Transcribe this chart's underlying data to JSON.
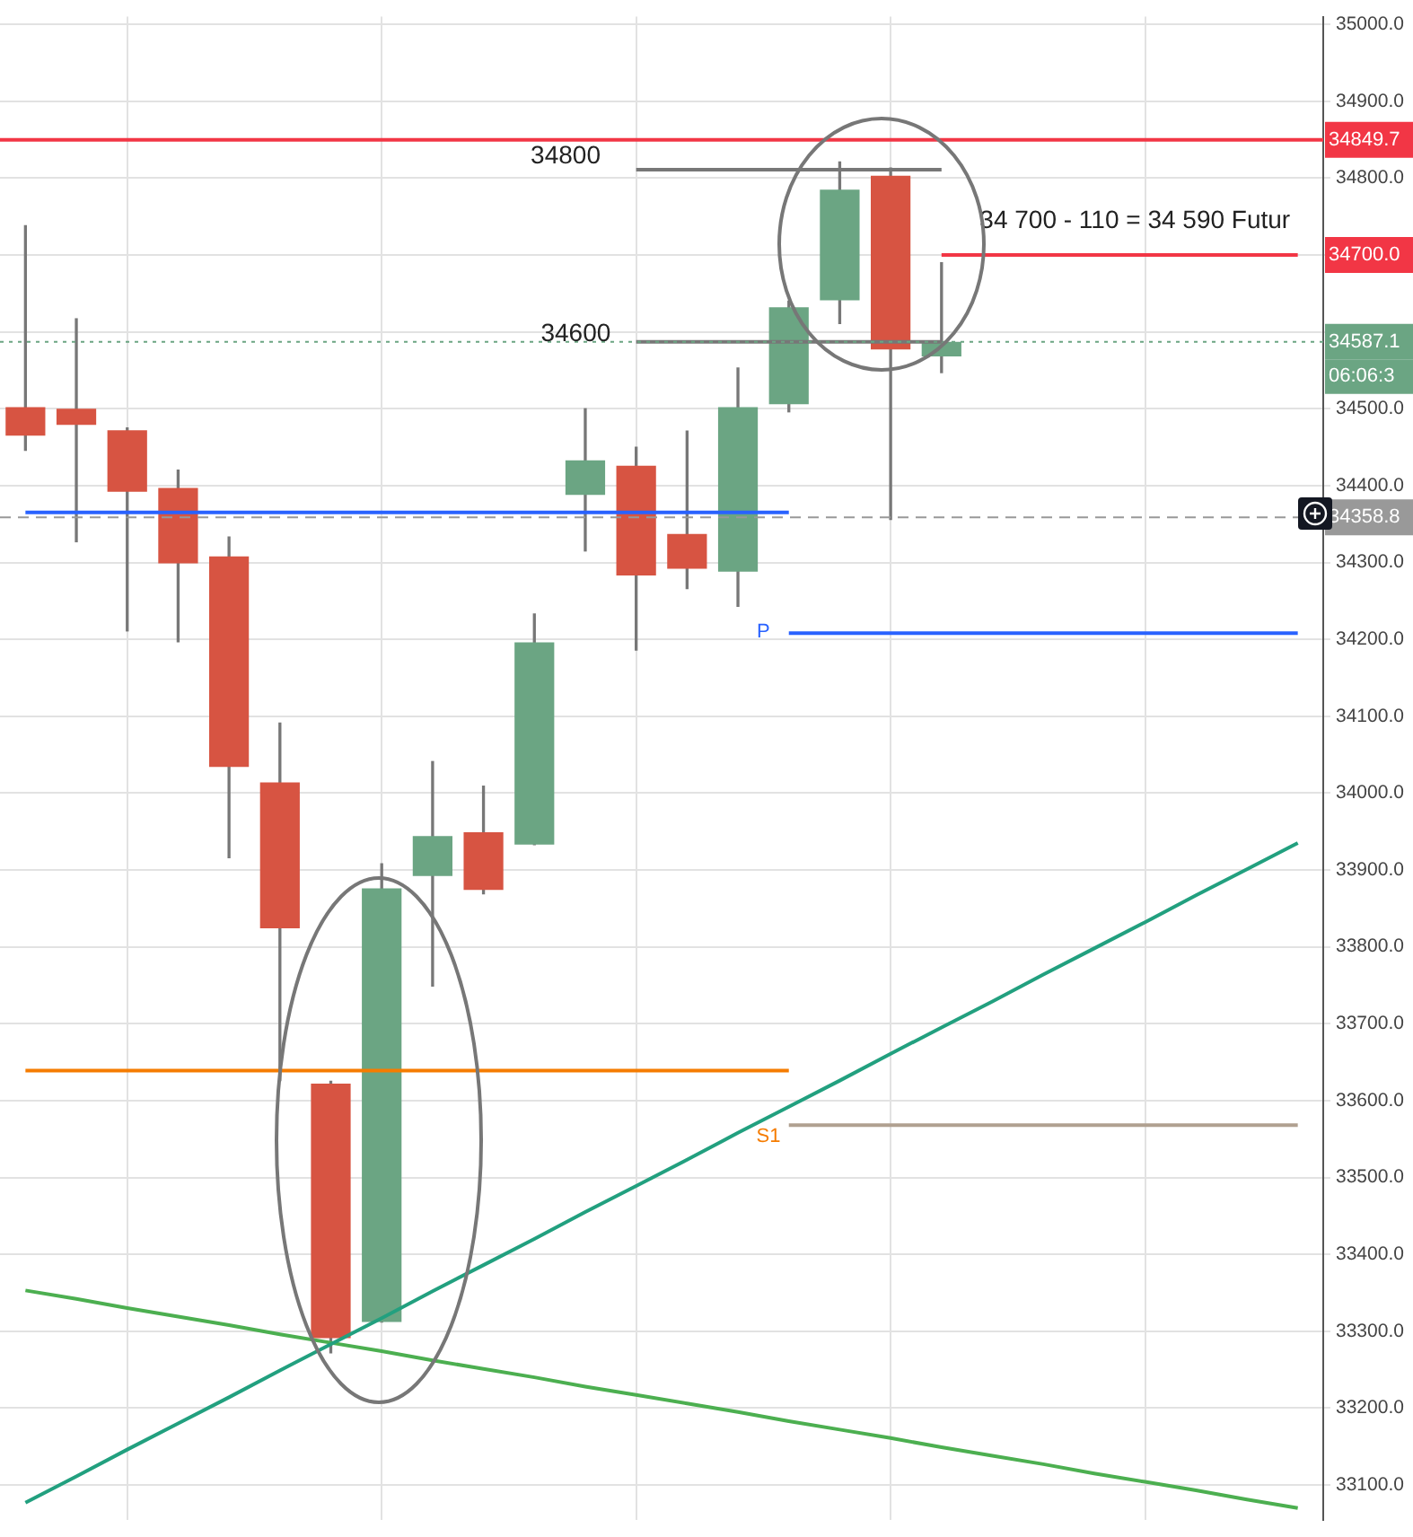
{
  "chart_data": {
    "type": "candlestick",
    "categories": [
      null,
      null,
      null,
      null,
      null,
      null,
      null,
      null,
      null,
      null,
      null,
      null,
      null,
      null,
      null,
      null,
      null,
      null,
      null,
      null,
      null,
      null,
      null,
      null,
      null,
      null
    ],
    "ohlc": [
      [
        34502,
        34738,
        34446,
        34465
      ],
      [
        34500,
        34617,
        34327,
        34479
      ],
      [
        34472,
        34475,
        34211,
        34392
      ],
      [
        34397,
        34420,
        34197,
        34299
      ],
      [
        34308,
        34333,
        33916,
        34034
      ],
      [
        34014,
        34091,
        33626,
        33824
      ],
      [
        33622,
        33625,
        33272,
        33291
      ],
      [
        33312,
        33908,
        33312,
        33876
      ],
      [
        33892,
        34041,
        33749,
        33944
      ],
      [
        33949,
        34009,
        33869,
        33874
      ],
      [
        33933,
        34233,
        33933,
        34196
      ],
      [
        34388,
        34500,
        34315,
        34433
      ],
      [
        34426,
        34450,
        34186,
        34283
      ],
      [
        34337,
        34471,
        34266,
        34292
      ],
      [
        34288,
        34553,
        34243,
        34502
      ],
      [
        34506,
        34640,
        34496,
        34632
      ],
      [
        34641,
        34821,
        34611,
        34785
      ],
      [
        34803,
        34813,
        34356,
        34577
      ],
      [
        34568,
        34690,
        34547,
        34587
      ],
      null,
      null,
      null,
      null,
      null,
      null,
      null
    ],
    "colors": [
      "#d75442",
      "#d75442",
      "#d75442",
      "#d75442",
      "#d75442",
      "#d75442",
      "#d75442",
      "#6ba583",
      "#6ba583",
      "#d75442",
      "#6ba583",
      "#6ba583",
      "#d75442",
      "#d75442",
      "#6ba583",
      "#6ba583",
      "#6ba583",
      "#d75442",
      "#6ba583",
      null,
      null,
      null,
      null,
      null,
      null,
      null
    ],
    "series": [
      {
        "type": "line",
        "color": "#2962ff",
        "values": [
          34365,
          34365,
          34365,
          34365,
          34365,
          34365,
          34365,
          34365,
          34365,
          34365,
          34365,
          34365,
          34365,
          34365,
          34365,
          34365,
          null,
          null,
          null,
          null,
          null,
          null,
          null,
          null,
          null,
          null
        ]
      },
      {
        "type": "line",
        "color": "#f57c00",
        "values": [
          33639,
          33639,
          33639,
          33639,
          33639,
          33639,
          33639,
          33639,
          33639,
          33639,
          33639,
          33639,
          33639,
          33639,
          33639,
          33639,
          null,
          null,
          null,
          null,
          null,
          null,
          null,
          null,
          null,
          null
        ]
      },
      {
        "type": "line",
        "color": "#2962ff",
        "values": [
          null,
          null,
          null,
          null,
          null,
          null,
          null,
          null,
          null,
          null,
          null,
          null,
          null,
          null,
          null,
          34208,
          34208,
          34208,
          34208,
          34208,
          34208,
          34208,
          34208,
          34208,
          34208,
          34208
        ]
      },
      {
        "type": "line",
        "color": "#b0a090",
        "values": [
          null,
          null,
          null,
          null,
          null,
          null,
          null,
          null,
          null,
          null,
          null,
          null,
          null,
          null,
          null,
          33568,
          33568,
          33568,
          33568,
          33568,
          33568,
          33568,
          33568,
          33568,
          33568,
          33568
        ]
      },
      {
        "type": "line",
        "color": "#777777",
        "values": [
          null,
          null,
          null,
          null,
          null,
          null,
          null,
          null,
          null,
          null,
          null,
          null,
          34811,
          34811,
          34811,
          34811,
          34811,
          34811,
          34811,
          null,
          null,
          null,
          null,
          null,
          null,
          null
        ]
      },
      {
        "type": "line",
        "color": "#777777",
        "values": [
          null,
          null,
          null,
          null,
          null,
          null,
          null,
          null,
          null,
          null,
          null,
          null,
          34587,
          34587,
          34587,
          34587,
          34587,
          34587,
          34587,
          null,
          null,
          null,
          null,
          null,
          null,
          null
        ]
      },
      {
        "type": "line",
        "name": "34700.0",
        "color": "#f23645",
        "values": [
          null,
          null,
          null,
          null,
          null,
          null,
          null,
          null,
          null,
          null,
          null,
          null,
          null,
          null,
          null,
          null,
          null,
          null,
          34700,
          34700,
          34700,
          34700,
          34700,
          34700,
          34700,
          34700
        ]
      },
      {
        "type": "line",
        "color": "#22a07f",
        "values": [
          33077,
          33111,
          33146,
          33180,
          33214,
          33249,
          33283,
          33317,
          33352,
          33386,
          33420,
          33455,
          33489,
          33523,
          33558,
          33592,
          33626,
          33661,
          33695,
          33729,
          33764,
          33798,
          33832,
          33867,
          33901,
          33935
        ]
      },
      {
        "type": "line",
        "color": "#4caf50",
        "values": [
          33353,
          33342,
          33330,
          33319,
          33308,
          33296,
          33285,
          33274,
          33262,
          33251,
          33240,
          33228,
          33217,
          33206,
          33195,
          33183,
          33172,
          33161,
          33149,
          33138,
          33127,
          33115,
          33104,
          33093,
          33081,
          33070
        ]
      }
    ],
    "ref_lines": [
      {
        "axis": "y",
        "value": 34849.7,
        "label": "34849.7",
        "color": "#f23645",
        "line_style": "solid"
      },
      {
        "axis": "y",
        "value": 34587.1,
        "label": "34587.1",
        "color": "#6ba583",
        "line_style": "dotted"
      },
      {
        "axis": "y",
        "value": 34358.8,
        "label": "34358.8",
        "color": "#999999",
        "line_style": "dashed"
      }
    ],
    "annotations": [
      "34800",
      "34600",
      "34 700 - 110 = 34 590 Futur",
      "P",
      "S1",
      "06:06:3"
    ],
    "ylim": [
      33054,
      35010
    ],
    "yticks": [
      {
        "value": 33100,
        "label": "33100.0"
      },
      {
        "value": 33200,
        "label": "33200.0"
      },
      {
        "value": 33300,
        "label": "33300.0"
      },
      {
        "value": 33400,
        "label": "33400.0"
      },
      {
        "value": 33500,
        "label": "33500.0"
      },
      {
        "value": 33600,
        "label": "33600.0"
      },
      {
        "value": 33700,
        "label": "33700.0"
      },
      {
        "value": 33800,
        "label": "33800.0"
      },
      {
        "value": 33900,
        "label": "33900.0"
      },
      {
        "value": 34000,
        "label": "34000.0"
      },
      {
        "value": 34100,
        "label": "34100.0"
      },
      {
        "value": 34200,
        "label": "34200.0"
      },
      {
        "value": 34300,
        "label": "34300.0"
      },
      {
        "value": 34400,
        "label": "34400.0"
      },
      {
        "value": 34500,
        "label": "34500.0"
      },
      {
        "value": 34600,
        "label": null
      },
      {
        "value": 34700,
        "label": null
      },
      {
        "value": 34800,
        "label": "34800.0"
      },
      {
        "value": 34900,
        "label": "34900.0"
      },
      {
        "value": 35000,
        "label": "35000.0"
      }
    ],
    "grid": true,
    "legend": false,
    "tick_labels": "y"
  }
}
